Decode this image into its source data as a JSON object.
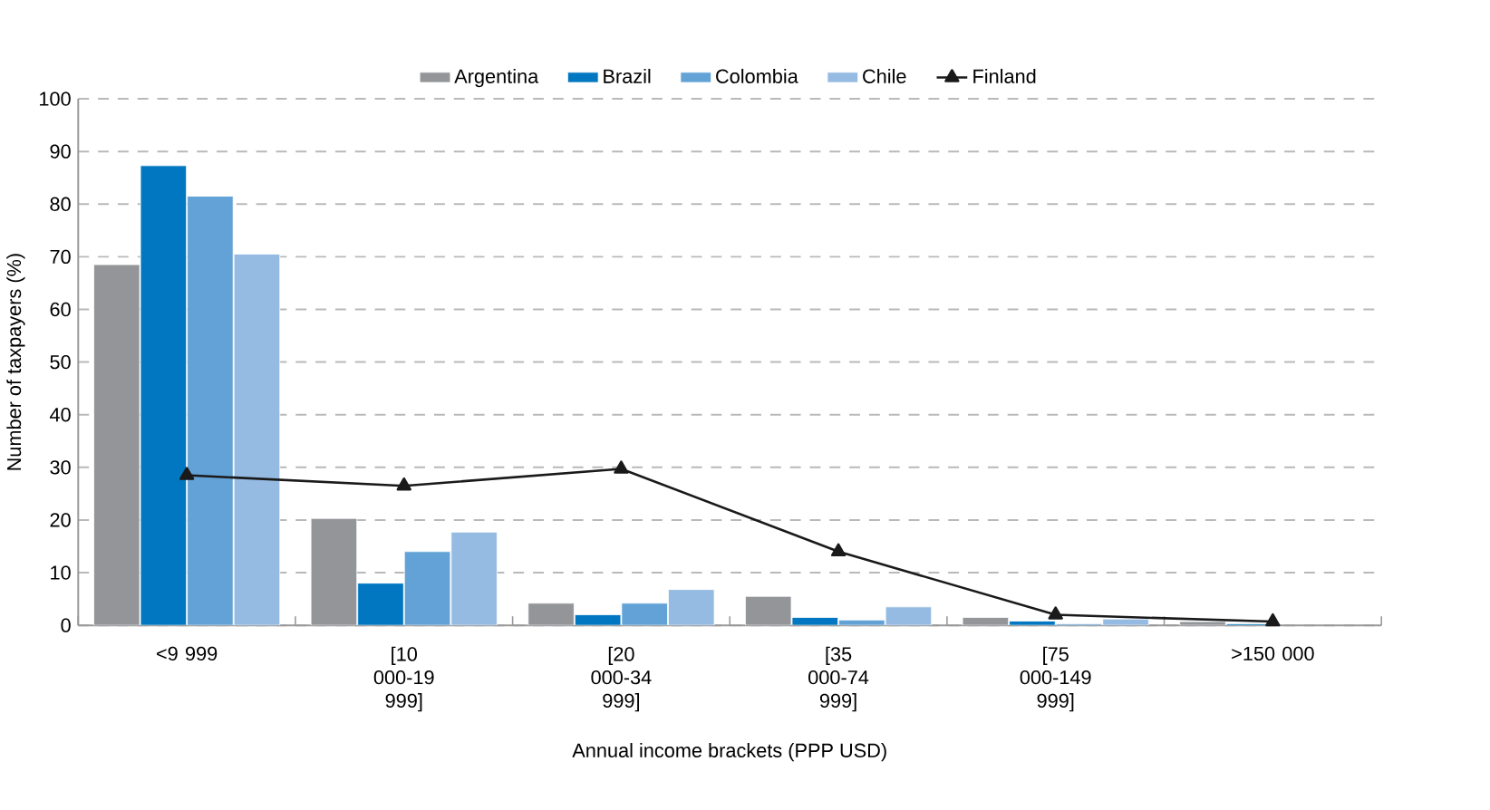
{
  "chart_data": {
    "type": "bar",
    "xlabel": "Annual income brackets (PPP USD)",
    "ylabel": "Number of taxpayers (%)",
    "categories": [
      "<9 999",
      "[10 000-19 999]",
      "[20 000-34 999]",
      "[35 000-74 999]",
      "[75 000-149 999]",
      ">150 000"
    ],
    "series": [
      {
        "name": "Argentina",
        "color": "#939598",
        "values": [
          68.5,
          20.3,
          4.2,
          5.5,
          1.5,
          0.7
        ]
      },
      {
        "name": "Brazil",
        "color": "#0077c0",
        "values": [
          87.3,
          8.0,
          2.0,
          1.5,
          0.8,
          0.3
        ]
      },
      {
        "name": "Colombia",
        "color": "#63a2d6",
        "values": [
          81.5,
          14.0,
          4.2,
          1.0,
          0.3,
          null
        ]
      },
      {
        "name": "Chile",
        "color": "#95bbe3",
        "values": [
          70.5,
          17.7,
          6.8,
          3.5,
          1.2,
          null
        ]
      },
      {
        "name": "Finland",
        "type": "line",
        "marker": "triangle",
        "color": "#1a1a1a",
        "values": [
          28.5,
          26.5,
          29.7,
          14.0,
          2.0,
          0.7
        ]
      }
    ],
    "ylim": [
      0,
      100
    ],
    "yticks": [
      0,
      10,
      20,
      30,
      40,
      50,
      60,
      70,
      80,
      90,
      100
    ],
    "grid": "y",
    "legend": "top"
  }
}
